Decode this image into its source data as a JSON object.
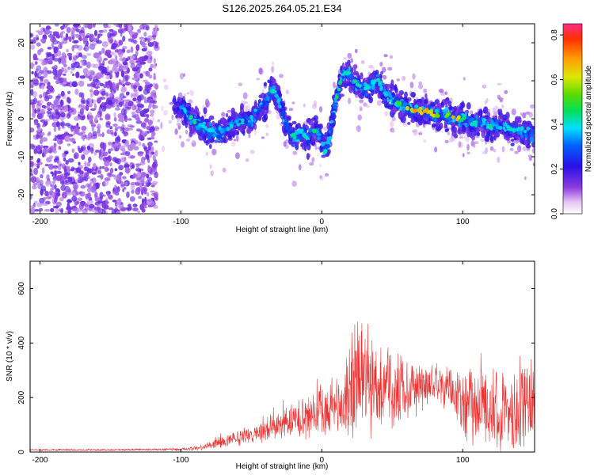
{
  "title": "S126.2025.264.05.21.E34",
  "chart_data": [
    {
      "type": "heatmap",
      "title": "S126.2025.264.05.21.E34",
      "xlabel": "Height of straight line (km)",
      "ylabel": "Frequency (Hz)",
      "xlim": [
        -207,
        151
      ],
      "ylim": [
        -25,
        25
      ],
      "xticks": [
        -200,
        -100,
        0,
        100
      ],
      "yticks": [
        -20,
        -10,
        0,
        10,
        20
      ],
      "ridge": {
        "x": [
          -100,
          -95,
          -90,
          -85,
          -80,
          -75,
          -70,
          -65,
          -60,
          -55,
          -50,
          -45,
          -40,
          -35,
          -30,
          -25,
          -20,
          -15,
          -10,
          -5,
          0,
          2,
          5,
          10,
          15,
          20,
          25,
          30,
          35,
          40,
          45,
          50,
          55,
          60,
          65,
          70,
          75,
          80,
          85,
          90,
          95,
          100,
          105,
          110,
          115,
          120,
          125,
          130,
          135,
          140,
          145,
          150
        ],
        "y": [
          3,
          1,
          -1,
          -2,
          -3,
          -4,
          -3,
          -2,
          -1,
          0,
          -1,
          2,
          4,
          8,
          4,
          -2,
          -5,
          -4,
          -5,
          -3,
          -5,
          -9,
          -6,
          5,
          12,
          12,
          9,
          8,
          9,
          10,
          7,
          5,
          4,
          3,
          2,
          2,
          2,
          1,
          1,
          1,
          0,
          0,
          -1,
          -1,
          -1,
          -2,
          -2,
          -2,
          -3,
          -3,
          -4,
          -4
        ]
      },
      "colorbar": {
        "label": "Normalized spectral amplitude",
        "range": [
          0,
          0.85
        ],
        "ticks": [
          0.0,
          0.2,
          0.4,
          0.6,
          0.8
        ],
        "tick_labels": [
          "0.0",
          "0.2",
          "0.4",
          "0.6",
          "0.8"
        ]
      }
    },
    {
      "type": "line",
      "xlabel": "Height of straight line (km)",
      "ylabel": "SNR (10 * v/v)",
      "xlim": [
        -207,
        151
      ],
      "ylim": [
        0,
        700
      ],
      "xticks": [
        -200,
        -100,
        0,
        100
      ],
      "yticks": [
        0,
        200,
        400,
        600
      ],
      "color": "#ee3333",
      "series": [
        {
          "name": "SNR",
          "envelope_x": [
            -207,
            -150,
            -100,
            -85,
            -70,
            -50,
            -30,
            -10,
            0,
            15,
            20,
            30,
            40,
            55,
            70,
            80,
            90,
            100,
            120,
            140,
            151
          ],
          "envelope_mean": [
            8,
            8,
            10,
            15,
            40,
            70,
            95,
            130,
            160,
            160,
            220,
            270,
            230,
            240,
            240,
            250,
            240,
            170,
            160,
            150,
            170
          ],
          "envelope_spread": [
            6,
            6,
            8,
            15,
            40,
            60,
            80,
            140,
            160,
            180,
            340,
            360,
            260,
            200,
            150,
            110,
            160,
            210,
            230,
            260,
            290
          ]
        }
      ]
    }
  ]
}
